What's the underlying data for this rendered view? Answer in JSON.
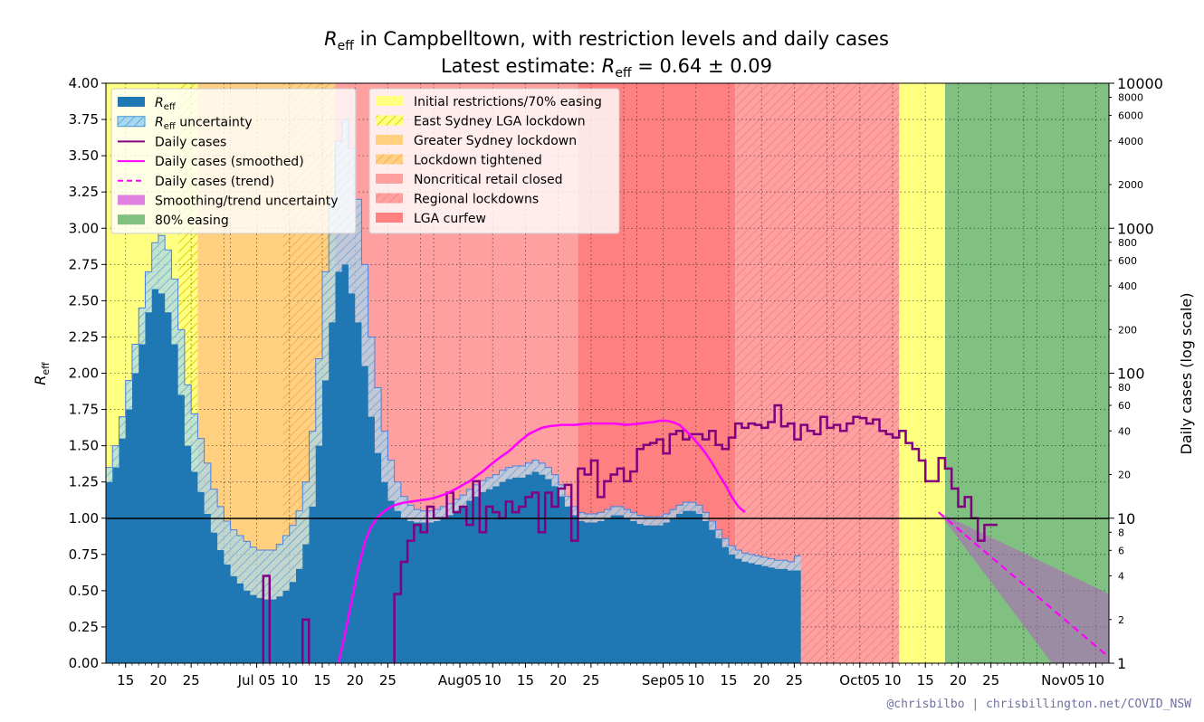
{
  "chart_data": {
    "type": "bar",
    "title_line1": "in Campbelltown, with restriction levels and daily cases",
    "title_line2": "Latest estimate:",
    "title_symbol": "R",
    "title_sub": "eff",
    "latest_estimate": "= 0.64 ± 0.09",
    "latest_value": 0.64,
    "latest_uncertainty": 0.09,
    "ylabel_symbol": "R",
    "ylabel_sub": "eff",
    "y2label": "Daily cases (log scale)",
    "ylim": [
      0,
      4
    ],
    "y2lim": [
      1,
      10000
    ],
    "y2scale": "log",
    "grid": true,
    "legend_placement": "top-left",
    "x_start": "2021-06-12",
    "x_end": "2021-11-12",
    "yticks": [
      "0.00",
      "0.25",
      "0.50",
      "0.75",
      "1.00",
      "1.25",
      "1.50",
      "1.75",
      "2.00",
      "2.25",
      "2.50",
      "2.75",
      "3.00",
      "3.25",
      "3.50",
      "3.75",
      "4.00"
    ],
    "y2ticks_major": [
      "1",
      "10",
      "100",
      "1000",
      "10000"
    ],
    "y2ticks_minor": [
      "2",
      "4",
      "6",
      "8",
      "20",
      "40",
      "60",
      "80",
      "200",
      "400",
      "600",
      "800",
      "2000",
      "4000",
      "6000",
      "8000"
    ],
    "xticks": [
      {
        "date": "2021-06-15",
        "label": "15"
      },
      {
        "date": "2021-06-20",
        "label": "20"
      },
      {
        "date": "2021-06-25",
        "label": "25"
      },
      {
        "date": "2021-07-05",
        "label": "Jul 05"
      },
      {
        "date": "2021-07-10",
        "label": "10"
      },
      {
        "date": "2021-07-15",
        "label": "15"
      },
      {
        "date": "2021-07-20",
        "label": "20"
      },
      {
        "date": "2021-07-25",
        "label": "25"
      },
      {
        "date": "2021-08-05",
        "label": "Aug05"
      },
      {
        "date": "2021-08-10",
        "label": "10"
      },
      {
        "date": "2021-08-15",
        "label": "15"
      },
      {
        "date": "2021-08-20",
        "label": "20"
      },
      {
        "date": "2021-08-25",
        "label": "25"
      },
      {
        "date": "2021-09-05",
        "label": "Sep05"
      },
      {
        "date": "2021-09-10",
        "label": "10"
      },
      {
        "date": "2021-09-15",
        "label": "15"
      },
      {
        "date": "2021-09-20",
        "label": "20"
      },
      {
        "date": "2021-09-25",
        "label": "25"
      },
      {
        "date": "2021-10-05",
        "label": "Oct05"
      },
      {
        "date": "2021-10-10",
        "label": "10"
      },
      {
        "date": "2021-10-15",
        "label": "15"
      },
      {
        "date": "2021-10-20",
        "label": "20"
      },
      {
        "date": "2021-10-25",
        "label": "25"
      },
      {
        "date": "2021-11-05",
        "label": "Nov05"
      },
      {
        "date": "2021-11-10",
        "label": "10"
      }
    ],
    "restriction_periods": [
      {
        "name": "Initial restrictions/70% easing",
        "start": "2021-06-12",
        "end": "2021-06-23",
        "color": "#ffff80",
        "hatch": false
      },
      {
        "name": "East Sydney LGA lockdown",
        "start": "2021-06-23",
        "end": "2021-06-26",
        "color": "#ffff80",
        "hatch": true
      },
      {
        "name": "Greater Sydney lockdown",
        "start": "2021-06-26",
        "end": "2021-07-09",
        "color": "#ffd080",
        "hatch": false
      },
      {
        "name": "Lockdown tightened",
        "start": "2021-07-09",
        "end": "2021-07-17",
        "color": "#ffd080",
        "hatch": true
      },
      {
        "name": "Noncritical retail closed",
        "start": "2021-07-17",
        "end": "2021-08-23",
        "color": "#ffa0a0",
        "hatch": false
      },
      {
        "name": "LGA curfew",
        "start": "2021-08-23",
        "end": "2021-09-16",
        "color": "#ff8080",
        "hatch": false
      },
      {
        "name": "Regional lockdowns",
        "start": "2021-09-16",
        "end": "2021-10-11",
        "color": "#ffa0a0",
        "hatch": true
      },
      {
        "name": "Initial restrictions/70% easing",
        "start": "2021-10-11",
        "end": "2021-10-18",
        "color": "#ffff80",
        "hatch": false
      },
      {
        "name": "80% easing",
        "start": "2021-10-18",
        "end": "2021-11-12",
        "color": "#80c080",
        "hatch": false
      }
    ],
    "reff_series": {
      "name": "R_eff",
      "start_date": "2021-06-12",
      "values": [
        1.25,
        1.35,
        1.55,
        1.75,
        2.0,
        2.2,
        2.42,
        2.58,
        2.55,
        2.42,
        2.2,
        1.85,
        1.5,
        1.32,
        1.18,
        1.03,
        0.9,
        0.78,
        0.68,
        0.6,
        0.55,
        0.5,
        0.47,
        0.45,
        0.44,
        0.44,
        0.46,
        0.5,
        0.56,
        0.65,
        0.82,
        1.08,
        1.5,
        1.95,
        2.35,
        2.7,
        2.75,
        2.55,
        2.35,
        2.05,
        1.7,
        1.45,
        1.25,
        1.12,
        1.05,
        1.0,
        0.98,
        0.97,
        0.97,
        0.97,
        0.98,
        1.0,
        1.02,
        1.05,
        1.08,
        1.12,
        1.15,
        1.18,
        1.2,
        1.22,
        1.25,
        1.27,
        1.28,
        1.28,
        1.3,
        1.32,
        1.3,
        1.27,
        1.22,
        1.15,
        1.08,
        1.02,
        0.98,
        0.97,
        0.97,
        0.98,
        1.0,
        1.02,
        1.02,
        1.0,
        0.98,
        0.96,
        0.95,
        0.95,
        0.95,
        0.97,
        1.0,
        1.03,
        1.05,
        1.05,
        1.03,
        0.98,
        0.92,
        0.86,
        0.8,
        0.75,
        0.72,
        0.7,
        0.69,
        0.68,
        0.67,
        0.66,
        0.65,
        0.65,
        0.64,
        0.64
      ]
    },
    "reff_uncertainty": {
      "name": "R_eff uncertainty",
      "lower": [
        1.2,
        1.3,
        1.48,
        1.68,
        1.9,
        2.1,
        2.3,
        2.45,
        2.45,
        2.3,
        2.1,
        1.75,
        1.42,
        1.25,
        1.1,
        0.95,
        0.84,
        0.72,
        0.62,
        0.55,
        0.5,
        0.46,
        0.43,
        0.42,
        0.42,
        0.42,
        0.43,
        0.47,
        0.52,
        0.6,
        0.76,
        1.0,
        1.4,
        1.85,
        2.25,
        2.6,
        2.65,
        2.45,
        2.25,
        1.95,
        1.62,
        1.38,
        1.2,
        1.08,
        1.01,
        0.97,
        0.95,
        0.94,
        0.94,
        0.94,
        0.95,
        0.97,
        0.99,
        1.02,
        1.05,
        1.09,
        1.12,
        1.15,
        1.17,
        1.19,
        1.22,
        1.24,
        1.25,
        1.25,
        1.27,
        1.29,
        1.27,
        1.24,
        1.19,
        1.12,
        1.05,
        0.99,
        0.95,
        0.94,
        0.94,
        0.95,
        0.97,
        0.99,
        0.99,
        0.97,
        0.95,
        0.93,
        0.92,
        0.92,
        0.92,
        0.94,
        0.97,
        1.0,
        1.02,
        1.02,
        1.0,
        0.95,
        0.89,
        0.83,
        0.77,
        0.72,
        0.69,
        0.67,
        0.66,
        0.65,
        0.64,
        0.63,
        0.62,
        0.62,
        0.61,
        0.61
      ],
      "upper": [
        1.35,
        1.5,
        1.7,
        1.95,
        2.2,
        2.45,
        2.7,
        2.9,
        2.95,
        2.85,
        2.65,
        2.3,
        1.92,
        1.72,
        1.55,
        1.38,
        1.2,
        1.08,
        0.98,
        0.92,
        0.88,
        0.84,
        0.8,
        0.78,
        0.78,
        0.78,
        0.82,
        0.88,
        0.95,
        1.05,
        1.25,
        1.6,
        2.1,
        2.7,
        3.2,
        3.6,
        3.75,
        3.55,
        3.2,
        2.75,
        2.25,
        1.9,
        1.6,
        1.4,
        1.25,
        1.15,
        1.09,
        1.06,
        1.05,
        1.05,
        1.06,
        1.08,
        1.1,
        1.13,
        1.16,
        1.2,
        1.23,
        1.26,
        1.28,
        1.3,
        1.33,
        1.35,
        1.36,
        1.36,
        1.38,
        1.4,
        1.38,
        1.35,
        1.3,
        1.23,
        1.15,
        1.08,
        1.04,
        1.03,
        1.03,
        1.04,
        1.06,
        1.08,
        1.08,
        1.06,
        1.04,
        1.02,
        1.01,
        1.01,
        1.01,
        1.03,
        1.06,
        1.09,
        1.11,
        1.11,
        1.09,
        1.04,
        0.98,
        0.92,
        0.86,
        0.81,
        0.78,
        0.76,
        0.75,
        0.74,
        0.73,
        0.72,
        0.71,
        0.71,
        0.7,
        0.74
      ]
    },
    "daily_cases": {
      "name": "Daily cases",
      "start_date": "2021-07-13",
      "values": [
        0,
        0,
        0,
        0,
        0,
        0,
        0,
        0,
        0,
        0,
        0,
        0,
        0,
        3,
        5,
        7,
        9,
        8,
        12,
        10,
        10,
        15,
        11,
        12,
        9,
        18,
        8,
        12,
        11,
        10,
        13,
        11,
        12,
        14,
        15,
        8,
        15,
        12,
        16,
        17,
        7,
        22,
        20,
        25,
        14,
        18,
        20,
        22,
        18,
        21,
        30,
        32,
        33,
        35,
        28,
        38,
        40,
        35,
        38,
        38,
        35,
        40,
        32,
        30,
        36,
        45,
        42,
        45,
        44,
        42,
        46,
        60,
        43,
        45,
        35,
        44,
        40,
        38,
        50,
        42,
        44,
        40,
        45,
        50,
        49,
        45,
        48,
        40,
        38,
        36,
        40,
        33,
        30,
        25,
        18,
        18,
        26,
        22,
        16,
        12,
        14,
        10,
        7,
        9,
        9
      ]
    },
    "smoothed_cases": {
      "name": "Daily cases (smoothed)",
      "start_date": "2021-07-17",
      "values": [
        1,
        1.6,
        2.7,
        4.5,
        6.8,
        8.8,
        10.2,
        11.2,
        12,
        12.5,
        12.8,
        13,
        13.2,
        13.4,
        13.6,
        14,
        14.5,
        15.2,
        16,
        17,
        18,
        19.5,
        21,
        23,
        25,
        27,
        29,
        32,
        35,
        38,
        40,
        42,
        43,
        43.5,
        44,
        44,
        44,
        44.5,
        45,
        45,
        45,
        45,
        45,
        44.5,
        44,
        44.5,
        45,
        45.5,
        46,
        47,
        47,
        46,
        44,
        40,
        36,
        32,
        28,
        24,
        20,
        17,
        14,
        12,
        11
      ]
    },
    "trend_cases": {
      "name": "Daily cases (trend)",
      "start_date": "2021-10-17",
      "end_date": "2021-11-12",
      "start_value": 11,
      "end_value": 1.1
    },
    "trend_uncertainty": {
      "name": "Smoothing/trend uncertainty",
      "end_lower": 0.3,
      "end_upper": 3.0
    },
    "legend_left": [
      {
        "label": "R_eff",
        "symbol": "R",
        "sub": "eff",
        "suffix": ""
      },
      {
        "label": "R_eff uncertainty",
        "symbol": "R",
        "sub": "eff",
        "suffix": " uncertainty"
      },
      {
        "label": "Daily cases",
        "symbol": "",
        "sub": "",
        "suffix": "Daily cases"
      },
      {
        "label": "Daily cases (smoothed)",
        "symbol": "",
        "sub": "",
        "suffix": "Daily cases (smoothed)"
      },
      {
        "label": "Daily cases (trend)",
        "symbol": "",
        "sub": "",
        "suffix": "Daily cases (trend)"
      },
      {
        "label": "Smoothing/trend uncertainty",
        "symbol": "",
        "sub": "",
        "suffix": "Smoothing/trend uncertainty"
      },
      {
        "label": "80% easing",
        "symbol": "",
        "sub": "",
        "suffix": "80% easing"
      }
    ],
    "legend_right": [
      "Initial restrictions/70% easing",
      "East Sydney LGA lockdown",
      "Greater Sydney lockdown",
      "Lockdown tightened",
      "Noncritical retail closed",
      "Regional lockdowns",
      "LGA curfew"
    ],
    "credit": "@chrisbilbo | chrisbillington.net/COVID_NSW",
    "colors": {
      "reff": "#1f77b4",
      "reff_uncert": "#a8d8f0",
      "daily": "#800080",
      "smoothed": "#ff00ff",
      "trend_band": "#e080e0",
      "easing80": "#80c080",
      "initial": "#ffff80",
      "greater_sydney": "#ffd080",
      "retail_closed": "#ffa0a0",
      "lga_curfew": "#ff8080"
    }
  }
}
